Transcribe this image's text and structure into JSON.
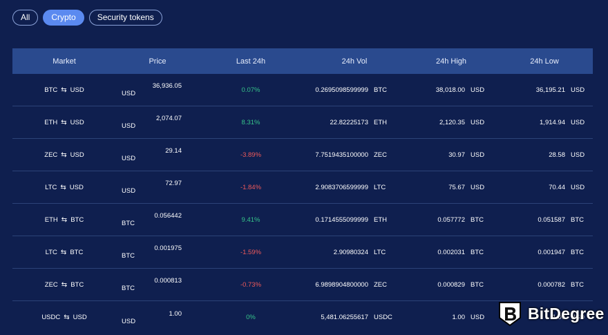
{
  "filters": [
    {
      "label": "All",
      "active": false
    },
    {
      "label": "Crypto",
      "active": true
    },
    {
      "label": "Security tokens",
      "active": false
    }
  ],
  "table": {
    "headers": [
      "Market",
      "Price",
      "Last 24h",
      "24h Vol",
      "24h High",
      "24h Low"
    ],
    "rows": [
      {
        "base": "BTC",
        "quote": "USD",
        "price": "36,936.05",
        "price_unit": "USD",
        "change": "0.07%",
        "trend": "up",
        "vol": "0.2695098599999",
        "vol_unit": "BTC",
        "high": "38,018.00",
        "high_unit": "USD",
        "low": "36,195.21",
        "low_unit": "USD"
      },
      {
        "base": "ETH",
        "quote": "USD",
        "price": "2,074.07",
        "price_unit": "USD",
        "change": "8.31%",
        "trend": "up",
        "vol": "22.82225173",
        "vol_unit": "ETH",
        "high": "2,120.35",
        "high_unit": "USD",
        "low": "1,914.94",
        "low_unit": "USD"
      },
      {
        "base": "ZEC",
        "quote": "USD",
        "price": "29.14",
        "price_unit": "USD",
        "change": "-3.89%",
        "trend": "down",
        "vol": "7.7519435100000",
        "vol_unit": "ZEC",
        "high": "30.97",
        "high_unit": "USD",
        "low": "28.58",
        "low_unit": "USD"
      },
      {
        "base": "LTC",
        "quote": "USD",
        "price": "72.97",
        "price_unit": "USD",
        "change": "-1.84%",
        "trend": "down",
        "vol": "2.9083706599999",
        "vol_unit": "LTC",
        "high": "75.67",
        "high_unit": "USD",
        "low": "70.44",
        "low_unit": "USD"
      },
      {
        "base": "ETH",
        "quote": "BTC",
        "price": "0.056442",
        "price_unit": "BTC",
        "change": "9.41%",
        "trend": "up",
        "vol": "0.1714555099999",
        "vol_unit": "ETH",
        "high": "0.057772",
        "high_unit": "BTC",
        "low": "0.051587",
        "low_unit": "BTC"
      },
      {
        "base": "LTC",
        "quote": "BTC",
        "price": "0.001975",
        "price_unit": "BTC",
        "change": "-1.59%",
        "trend": "down",
        "vol": "2.90980324",
        "vol_unit": "LTC",
        "high": "0.002031",
        "high_unit": "BTC",
        "low": "0.001947",
        "low_unit": "BTC"
      },
      {
        "base": "ZEC",
        "quote": "BTC",
        "price": "0.000813",
        "price_unit": "BTC",
        "change": "-0.73%",
        "trend": "down",
        "vol": "6.9898904800000",
        "vol_unit": "ZEC",
        "high": "0.000829",
        "high_unit": "BTC",
        "low": "0.000782",
        "low_unit": "BTC"
      },
      {
        "base": "USDC",
        "quote": "USD",
        "price": "1.00",
        "price_unit": "USD",
        "change": "0%",
        "trend": "up",
        "vol": "5,481.06255617",
        "vol_unit": "USDC",
        "high": "1.00",
        "high_unit": "USD",
        "low": "1.00",
        "low_unit": "USD"
      }
    ]
  },
  "icons": {
    "pair_separator": "swap-arrows-icon"
  },
  "watermark": {
    "text": "BitDegree",
    "icon": "bitdegree-shield-logo-icon"
  },
  "colors": {
    "background": "#0f1f4f",
    "header_bg": "#2a4a8e",
    "active_pill": "#5b8af0",
    "positive": "#36c48a",
    "negative": "#ef5a5a"
  }
}
